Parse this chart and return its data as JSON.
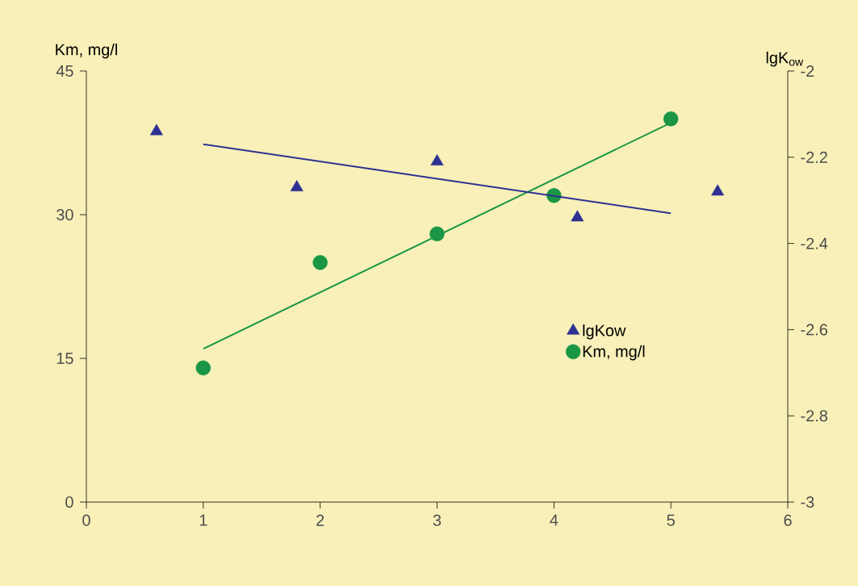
{
  "chart_data": {
    "type": "scatter",
    "ylabel": "Km, mg/l",
    "y2label": "lgK$_{ow}$",
    "xlim": [
      0,
      6
    ],
    "xticks": [
      0,
      1,
      2,
      3,
      4,
      5,
      6
    ],
    "ylim": [
      0,
      45
    ],
    "yticks": [
      0,
      15,
      30,
      45
    ],
    "y2lim": [
      -3,
      -2
    ],
    "y2ticks": [
      -3,
      -2.8,
      -2.6,
      -2.4,
      -2.2,
      -2
    ],
    "legend": "right",
    "series": [
      {
        "name": "lgKow",
        "marker": "triangle",
        "axis": "y2",
        "color": "#2e3192",
        "x": [
          0.6,
          1.8,
          3,
          4.2,
          5.4
        ],
        "values": [
          -2.14,
          -2.27,
          -2.21,
          -2.34,
          -2.28
        ]
      },
      {
        "name": "Km, mg/l",
        "marker": "circle",
        "color": "#1a9645",
        "x": [
          1,
          2,
          3,
          4,
          5
        ],
        "values": [
          14,
          25,
          28,
          32,
          40
        ]
      },
      {
        "type": "line",
        "axis": "y2",
        "color": "#2e3192",
        "x": [
          1,
          5
        ],
        "values": [
          -2.17,
          -2.33
        ]
      },
      {
        "type": "line",
        "color": "#1a9645",
        "x": [
          1,
          5
        ],
        "values": [
          16,
          39.6
        ]
      }
    ]
  }
}
